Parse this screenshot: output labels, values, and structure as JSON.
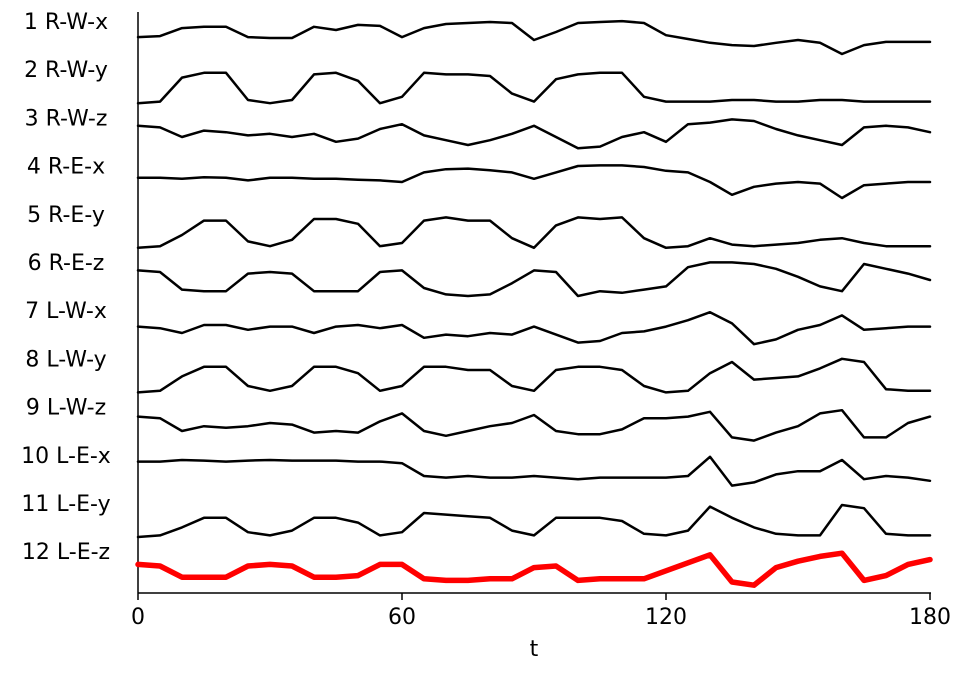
{
  "chart_data": {
    "type": "line",
    "xlabel": "t",
    "xlim": [
      0,
      180
    ],
    "xticks": [
      0,
      60,
      120,
      180
    ],
    "x": [
      0,
      5,
      10,
      15,
      20,
      25,
      30,
      35,
      40,
      45,
      50,
      55,
      60,
      65,
      70,
      75,
      80,
      85,
      90,
      95,
      100,
      105,
      110,
      115,
      120,
      125,
      130,
      135,
      140,
      145,
      150,
      155,
      160,
      165,
      170,
      175,
      180
    ],
    "series": [
      {
        "name": "1 R-W-x",
        "color": "#000000",
        "values": [
          0.56,
          0.59,
          0.84,
          0.88,
          0.88,
          0.56,
          0.53,
          0.53,
          0.88,
          0.78,
          0.94,
          0.91,
          0.56,
          0.84,
          0.97,
          1.0,
          1.03,
          1.0,
          0.47,
          0.72,
          1.0,
          1.03,
          1.06,
          1.0,
          0.62,
          0.5,
          0.38,
          0.31,
          0.28,
          0.38,
          0.47,
          0.38,
          0.03,
          0.31,
          0.41,
          0.41,
          0.41
        ]
      },
      {
        "name": "2 R-W-y",
        "color": "#000000",
        "values": [
          0,
          0.05,
          0.8,
          0.95,
          0.95,
          0.1,
          0,
          0.1,
          0.9,
          0.95,
          0.7,
          0,
          0.2,
          0.95,
          0.9,
          0.9,
          0.85,
          0.3,
          0.05,
          0.75,
          0.9,
          0.95,
          0.95,
          0.2,
          0.05,
          0.05,
          0.05,
          0.1,
          0.1,
          0.05,
          0.05,
          0.1,
          0.1,
          0.05,
          0.05,
          0.05,
          0.05
        ]
      },
      {
        "name": "3 R-W-z",
        "color": "#000000",
        "values": [
          0.8,
          0.75,
          0.45,
          0.65,
          0.6,
          0.5,
          0.55,
          0.45,
          0.55,
          0.3,
          0.4,
          0.7,
          0.85,
          0.5,
          0.35,
          0.2,
          0.35,
          0.55,
          0.8,
          0.45,
          0.1,
          0.15,
          0.45,
          0.6,
          0.3,
          0.85,
          0.9,
          1.0,
          0.95,
          0.7,
          0.5,
          0.35,
          0.2,
          0.75,
          0.8,
          0.75,
          0.6
        ]
      },
      {
        "name": "4 R-E-x",
        "color": "#000000",
        "values": [
          0.68,
          0.68,
          0.65,
          0.7,
          0.68,
          0.6,
          0.68,
          0.68,
          0.65,
          0.65,
          0.62,
          0.6,
          0.55,
          0.85,
          0.95,
          0.97,
          0.92,
          0.85,
          0.65,
          0.85,
          1.05,
          1.07,
          1.07,
          1.02,
          0.9,
          0.85,
          0.55,
          0.15,
          0.4,
          0.5,
          0.55,
          0.5,
          0.05,
          0.45,
          0.5,
          0.55,
          0.55
        ]
      },
      {
        "name": "5 R-E-y",
        "color": "#000000",
        "values": [
          0,
          0.05,
          0.4,
          0.85,
          0.85,
          0.2,
          0.05,
          0.25,
          0.9,
          0.9,
          0.75,
          0.05,
          0.15,
          0.85,
          0.95,
          0.85,
          0.85,
          0.3,
          0,
          0.7,
          0.95,
          0.9,
          0.95,
          0.3,
          0,
          0.05,
          0.3,
          0.1,
          0.05,
          0.1,
          0.15,
          0.25,
          0.3,
          0.15,
          0.05,
          0.05,
          0.05
        ]
      },
      {
        "name": "6 R-E-z",
        "color": "#000000",
        "values": [
          0.8,
          0.75,
          0.2,
          0.15,
          0.15,
          0.7,
          0.75,
          0.7,
          0.15,
          0.15,
          0.15,
          0.75,
          0.8,
          0.25,
          0.05,
          0,
          0.05,
          0.4,
          0.8,
          0.75,
          0,
          0.15,
          0.1,
          0.2,
          0.3,
          0.9,
          1.05,
          1.05,
          1.0,
          0.85,
          0.6,
          0.3,
          0.15,
          1.0,
          0.85,
          0.7,
          0.5
        ]
      },
      {
        "name": "7 L-W-x",
        "color": "#000000",
        "values": [
          0.55,
          0.5,
          0.35,
          0.6,
          0.6,
          0.45,
          0.55,
          0.55,
          0.35,
          0.55,
          0.6,
          0.5,
          0.6,
          0.2,
          0.3,
          0.25,
          0.35,
          0.3,
          0.55,
          0.3,
          0.05,
          0.1,
          0.35,
          0.4,
          0.55,
          0.75,
          1.0,
          0.65,
          0,
          0.15,
          0.45,
          0.6,
          0.9,
          0.45,
          0.5,
          0.55,
          0.55
        ]
      },
      {
        "name": "8 L-W-y",
        "color": "#000000",
        "values": [
          0,
          0.05,
          0.5,
          0.8,
          0.8,
          0.2,
          0.05,
          0.2,
          0.8,
          0.8,
          0.6,
          0.05,
          0.2,
          0.8,
          0.8,
          0.7,
          0.7,
          0.2,
          0.05,
          0.7,
          0.8,
          0.8,
          0.7,
          0.2,
          0,
          0.05,
          0.6,
          0.95,
          0.4,
          0.45,
          0.5,
          0.75,
          1.05,
          0.95,
          0.1,
          0.05,
          0.05
        ]
      },
      {
        "name": "9 L-W-z",
        "color": "#000000",
        "values": [
          0.75,
          0.7,
          0.3,
          0.45,
          0.4,
          0.45,
          0.55,
          0.5,
          0.25,
          0.3,
          0.25,
          0.6,
          0.85,
          0.3,
          0.15,
          0.3,
          0.45,
          0.55,
          0.8,
          0.3,
          0.2,
          0.2,
          0.35,
          0.7,
          0.7,
          0.75,
          0.9,
          0.1,
          0,
          0.25,
          0.45,
          0.85,
          0.95,
          0.1,
          0.1,
          0.55,
          0.75
        ]
      },
      {
        "name": "10 L-E-x",
        "color": "#000000",
        "values": [
          0.85,
          0.85,
          0.9,
          0.88,
          0.85,
          0.88,
          0.9,
          0.88,
          0.88,
          0.88,
          0.85,
          0.85,
          0.8,
          0.4,
          0.35,
          0.4,
          0.35,
          0.35,
          0.4,
          0.35,
          0.3,
          0.35,
          0.35,
          0.35,
          0.35,
          0.4,
          1.0,
          0.1,
          0.2,
          0.45,
          0.55,
          0.55,
          0.9,
          0.3,
          0.4,
          0.35,
          0.25
        ]
      },
      {
        "name": "11 L-E-y",
        "color": "#000000",
        "values": [
          0,
          0.05,
          0.3,
          0.6,
          0.6,
          0.15,
          0.05,
          0.2,
          0.6,
          0.6,
          0.45,
          0.05,
          0.15,
          0.75,
          0.7,
          0.65,
          0.6,
          0.2,
          0.05,
          0.6,
          0.6,
          0.6,
          0.5,
          0.1,
          0.05,
          0.2,
          0.95,
          0.6,
          0.3,
          0.1,
          0.05,
          0.05,
          1.0,
          0.9,
          0.1,
          0.05,
          0.05
        ]
      },
      {
        "name": "12 L-E-z",
        "color": "#ff0000",
        "values": [
          0.65,
          0.6,
          0.25,
          0.25,
          0.25,
          0.6,
          0.65,
          0.6,
          0.25,
          0.25,
          0.3,
          0.65,
          0.65,
          0.2,
          0.15,
          0.15,
          0.2,
          0.2,
          0.55,
          0.6,
          0.15,
          0.2,
          0.2,
          0.2,
          0.45,
          0.7,
          0.95,
          0.1,
          0,
          0.55,
          0.75,
          0.9,
          1.0,
          0.15,
          0.3,
          0.65,
          0.8
        ]
      }
    ]
  }
}
